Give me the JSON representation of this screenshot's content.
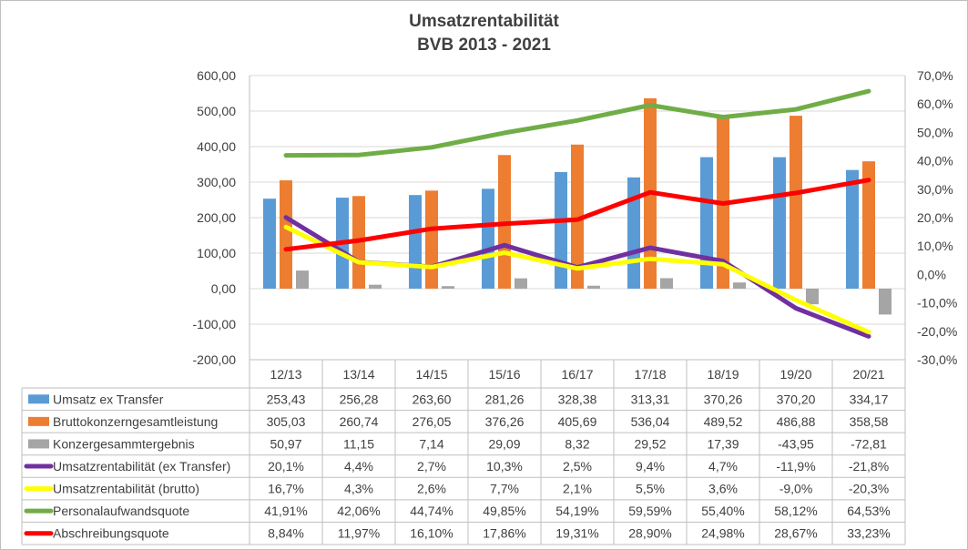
{
  "chart_data": {
    "type": "bar",
    "title": "Umsatzrentabilität",
    "subtitle": "BVB 2013 - 2021",
    "categories": [
      "12/13",
      "13/14",
      "14/15",
      "15/16",
      "16/17",
      "17/18",
      "18/19",
      "19/20",
      "20/21"
    ],
    "y_left": {
      "ylim": [
        -200,
        600
      ],
      "ticks": [
        "600,00",
        "500,00",
        "400,00",
        "300,00",
        "200,00",
        "100,00",
        "0,00",
        "-100,00",
        "-200,00"
      ]
    },
    "y_right": {
      "ylim": [
        -30,
        70
      ],
      "ticks": [
        "70,0%",
        "60,0%",
        "50,0%",
        "40,0%",
        "30,0%",
        "20,0%",
        "10,0%",
        "0,0%",
        "-10,0%",
        "-20,0%",
        "-30,0%"
      ]
    },
    "grid": true,
    "legend": "data-table",
    "series": [
      {
        "name": "Umsatz ex Transfer",
        "kind": "bar",
        "axis": "left",
        "color": "#5b9bd5",
        "values": [
          253.43,
          256.28,
          263.6,
          281.26,
          328.38,
          313.31,
          370.26,
          370.2,
          334.17
        ],
        "labels": [
          "253,43",
          "256,28",
          "263,60",
          "281,26",
          "328,38",
          "313,31",
          "370,26",
          "370,20",
          "334,17"
        ]
      },
      {
        "name": "Bruttokonzerngesamtleistung",
        "kind": "bar",
        "axis": "left",
        "color": "#ed7d31",
        "values": [
          305.03,
          260.74,
          276.05,
          376.26,
          405.69,
          536.04,
          489.52,
          486.88,
          358.58
        ],
        "labels": [
          "305,03",
          "260,74",
          "276,05",
          "376,26",
          "405,69",
          "536,04",
          "489,52",
          "486,88",
          "358,58"
        ]
      },
      {
        "name": "Konzergesammtergebnis",
        "kind": "bar",
        "axis": "left",
        "color": "#a5a5a5",
        "values": [
          50.97,
          11.15,
          7.14,
          29.09,
          8.32,
          29.52,
          17.39,
          -43.95,
          -72.81
        ],
        "labels": [
          "50,97",
          "11,15",
          "7,14",
          "29,09",
          "8,32",
          "29,52",
          "17,39",
          "-43,95",
          "-72,81"
        ]
      },
      {
        "name": "Umsatzrentabilität (ex Transfer)",
        "kind": "line",
        "axis": "right",
        "color": "#7030a0",
        "values": [
          20.1,
          4.4,
          2.7,
          10.3,
          2.5,
          9.4,
          4.7,
          -11.9,
          -21.8
        ],
        "labels": [
          "20,1%",
          "4,4%",
          "2,7%",
          "10,3%",
          "2,5%",
          "9,4%",
          "4,7%",
          "-11,9%",
          "-21,8%"
        ]
      },
      {
        "name": "Umsatzrentabilität (brutto)",
        "kind": "line",
        "axis": "right",
        "color": "#ffff00",
        "values": [
          16.7,
          4.3,
          2.6,
          7.7,
          2.1,
          5.5,
          3.6,
          -9.0,
          -20.3
        ],
        "labels": [
          "16,7%",
          "4,3%",
          "2,6%",
          "7,7%",
          "2,1%",
          "5,5%",
          "3,6%",
          "-9,0%",
          "-20,3%"
        ]
      },
      {
        "name": "Personalaufwandsquote",
        "kind": "line",
        "axis": "right",
        "color": "#70ad47",
        "values": [
          41.91,
          42.06,
          44.74,
          49.85,
          54.19,
          59.59,
          55.4,
          58.12,
          64.53
        ],
        "labels": [
          "41,91%",
          "42,06%",
          "44,74%",
          "49,85%",
          "54,19%",
          "59,59%",
          "55,40%",
          "58,12%",
          "64,53%"
        ]
      },
      {
        "name": "Abschreibungsquote",
        "kind": "line",
        "axis": "right",
        "color": "#ff0000",
        "values": [
          8.84,
          11.97,
          16.1,
          17.86,
          19.31,
          28.9,
          24.98,
          28.67,
          33.23
        ],
        "labels": [
          "8,84%",
          "11,97%",
          "16,10%",
          "17,86%",
          "19,31%",
          "28,90%",
          "24,98%",
          "28,67%",
          "33,23%"
        ]
      }
    ]
  }
}
